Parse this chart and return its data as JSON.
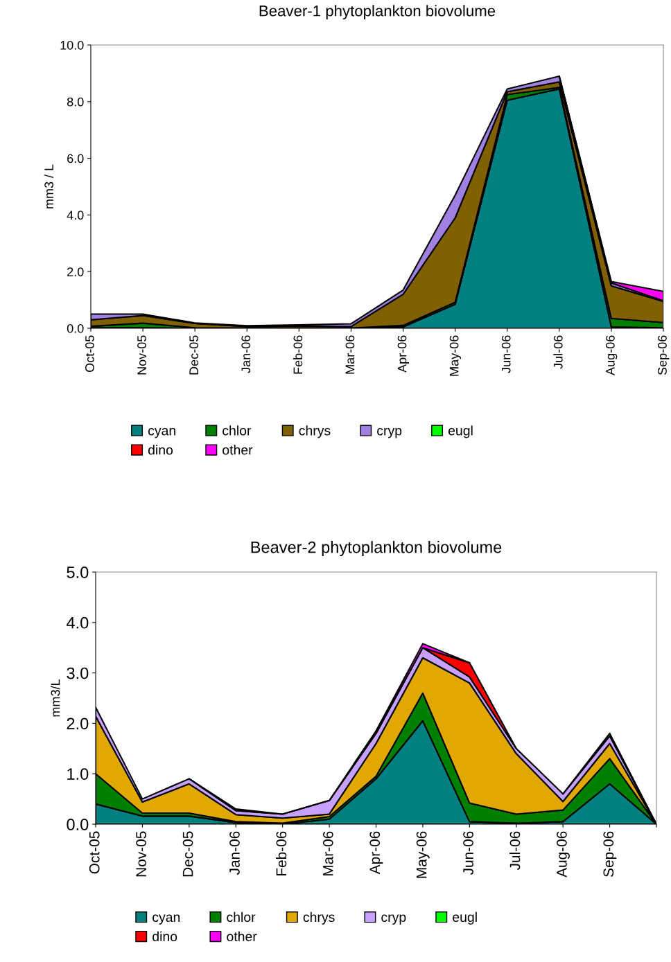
{
  "chart_data": [
    {
      "type": "area",
      "stacked": true,
      "title": "Beaver-1 phytoplankton biovolume",
      "ylabel": "mm3 / L",
      "categories": [
        "Oct-05",
        "Nov-05",
        "Dec-05",
        "Jan-06",
        "Feb-06",
        "Mar-06",
        "Apr-06",
        "May-06",
        "Jun-06",
        "Jul-06",
        "Aug-06",
        "Sep-06"
      ],
      "ylim": [
        0,
        10
      ],
      "yticks": [
        {
          "value": 0,
          "label": "0.0"
        },
        {
          "value": 2,
          "label": "2.0"
        },
        {
          "value": 4,
          "label": "4.0"
        },
        {
          "value": 6,
          "label": "6.0"
        },
        {
          "value": 8,
          "label": "8.0"
        },
        {
          "value": 10,
          "label": "10.0"
        }
      ],
      "legend": "bottom",
      "grid": false,
      "series": [
        {
          "name": "cyan",
          "color": "#008080",
          "values": [
            0.02,
            0.02,
            0,
            0,
            0,
            0,
            0.05,
            0.85,
            8.05,
            8.45,
            0.05,
            0.02
          ]
        },
        {
          "name": "chlor",
          "color": "#008000",
          "values": [
            0.05,
            0.16,
            0.02,
            0.01,
            0.01,
            0.01,
            0.05,
            0.07,
            0.2,
            0.05,
            0.3,
            0.18
          ]
        },
        {
          "name": "chrys",
          "color": "#806000",
          "values": [
            0.23,
            0.27,
            0.15,
            0.05,
            0.07,
            0.05,
            1.1,
            2.98,
            0.1,
            0.2,
            1.15,
            0.75
          ]
        },
        {
          "name": "cryp",
          "color": "#a080e0",
          "values": [
            0.2,
            0.05,
            0.02,
            0.03,
            0.04,
            0.1,
            0.15,
            0.8,
            0.1,
            0.2,
            0.1,
            0.02
          ]
        },
        {
          "name": "eugl",
          "color": "#00ff00",
          "values": [
            null,
            null,
            null,
            null,
            null,
            null,
            null,
            null,
            null,
            null,
            null,
            null
          ]
        },
        {
          "name": "dino",
          "color": "#ff0000",
          "values": [
            null,
            null,
            null,
            null,
            null,
            null,
            null,
            null,
            null,
            null,
            null,
            null
          ]
        },
        {
          "name": "other",
          "color": "#ff00ff",
          "values": [
            null,
            null,
            null,
            null,
            null,
            null,
            null,
            null,
            null,
            0,
            0.05,
            0.33
          ]
        }
      ]
    },
    {
      "type": "area",
      "stacked": true,
      "title": "Beaver-2 phytoplankton biovolume",
      "ylabel": "mm3/L",
      "categories": [
        "Oct-05",
        "Nov-05",
        "Dec-05",
        "Jan-06",
        "Feb-06",
        "Mar-06",
        "Apr-06",
        "May-06",
        "Jun-06",
        "Jul-06",
        "Aug-06",
        "Sep-06",
        null
      ],
      "ylim": [
        0,
        5
      ],
      "yticks": [
        {
          "value": 0,
          "label": "0.0"
        },
        {
          "value": 1,
          "label": "1.0"
        },
        {
          "value": 2,
          "label": "2.0"
        },
        {
          "value": 3,
          "label": "3.0"
        },
        {
          "value": 4,
          "label": "4.0"
        },
        {
          "value": 5,
          "label": "5.0"
        }
      ],
      "legend": "bottom",
      "grid": false,
      "series": [
        {
          "name": "cyan",
          "color": "#008080",
          "values": [
            0.4,
            0.16,
            0.16,
            0.03,
            0,
            0.1,
            0.9,
            2.05,
            0.05,
            0.02,
            0.05,
            0.8,
            0
          ]
        },
        {
          "name": "chlor",
          "color": "#008000",
          "values": [
            0.6,
            0.06,
            0.06,
            0.02,
            0.02,
            0.05,
            0.05,
            0.55,
            0.37,
            0.18,
            0.23,
            0.5,
            0
          ]
        },
        {
          "name": "chrys",
          "color": "#e0a800",
          "values": [
            1.14,
            0.22,
            0.58,
            0.14,
            0.1,
            0.05,
            0.65,
            0.7,
            2.38,
            1.2,
            0.17,
            0.3,
            0
          ]
        },
        {
          "name": "cryp",
          "color": "#c8a0ff",
          "values": [
            0.18,
            0.06,
            0.1,
            0.08,
            0.08,
            0.27,
            0.2,
            0.2,
            0.12,
            0.1,
            0.15,
            0.15,
            0
          ]
        },
        {
          "name": "eugl",
          "color": "#00ff00",
          "values": [
            null,
            null,
            null,
            null,
            null,
            null,
            null,
            null,
            null,
            null,
            0,
            0.05,
            0
          ]
        },
        {
          "name": "dino",
          "color": "#ff0000",
          "values": [
            null,
            null,
            null,
            null,
            null,
            null,
            null,
            0,
            0.28,
            0,
            null,
            null,
            null
          ]
        },
        {
          "name": "other",
          "color": "#ff00ff",
          "values": [
            null,
            null,
            0,
            0.03,
            0,
            0,
            0.05,
            0.08,
            0,
            null,
            null,
            null,
            null
          ]
        }
      ]
    }
  ]
}
